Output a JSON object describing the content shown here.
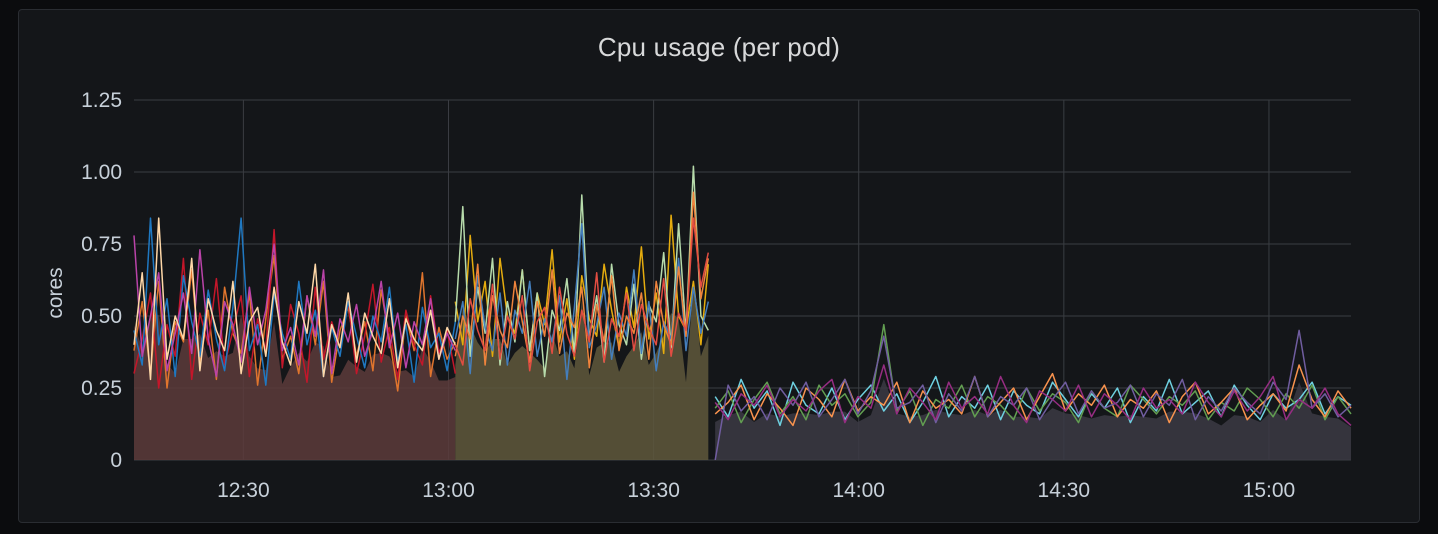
{
  "panel": {
    "title": "Cpu usage (per pod)"
  },
  "chart_data": {
    "type": "line",
    "title": "Cpu usage (per pod)",
    "xlabel": "",
    "ylabel": "cores",
    "ylim": [
      0,
      1.25
    ],
    "xlim": [
      "12:14",
      "15:12"
    ],
    "yticks": [
      "0",
      "0.25",
      "0.50",
      "0.75",
      "1.00",
      "1.25"
    ],
    "xticks": [
      "12:30",
      "13:00",
      "13:30",
      "14:00",
      "14:30",
      "15:00"
    ],
    "grid": true,
    "legend": "none",
    "background": "#141619",
    "segments": [
      {
        "start": "12:14",
        "end": "13:01",
        "fill": "#5c3b3b",
        "series": [
          {
            "color": "#e0752d",
            "values": [
              0.38,
              0.55,
              0.3,
              0.62,
              0.25,
              0.48,
              0.41,
              0.66,
              0.33,
              0.52,
              0.28,
              0.6,
              0.44,
              0.37,
              0.58,
              0.26,
              0.49,
              0.71,
              0.35,
              0.43,
              0.3,
              0.57,
              0.4,
              0.62,
              0.27,
              0.45,
              0.53,
              0.36,
              0.48,
              0.31,
              0.59,
              0.42,
              0.24,
              0.5,
              0.38,
              0.65,
              0.29,
              0.46,
              0.35,
              0.41
            ]
          },
          {
            "color": "#c4162a",
            "values": [
              0.3,
              0.42,
              0.58,
              0.25,
              0.47,
              0.36,
              0.7,
              0.28,
              0.51,
              0.4,
              0.63,
              0.33,
              0.45,
              0.57,
              0.29,
              0.49,
              0.38,
              0.8,
              0.32,
              0.54,
              0.44,
              0.27,
              0.6,
              0.35,
              0.48,
              0.39,
              0.55,
              0.3,
              0.43,
              0.61,
              0.34,
              0.46,
              0.28,
              0.52,
              0.4,
              0.33,
              0.57,
              0.37,
              0.45,
              0.3
            ]
          },
          {
            "color": "#1f78c1",
            "values": [
              0.45,
              0.33,
              0.84,
              0.4,
              0.56,
              0.29,
              0.64,
              0.48,
              0.36,
              0.59,
              0.42,
              0.31,
              0.53,
              0.84,
              0.38,
              0.47,
              0.26,
              0.58,
              0.44,
              0.35,
              0.62,
              0.4,
              0.52,
              0.29,
              0.46,
              0.36,
              0.55,
              0.43,
              0.32,
              0.5,
              0.41,
              0.6,
              0.34,
              0.47,
              0.27,
              0.53,
              0.39,
              0.44,
              0.31,
              0.48
            ]
          },
          {
            "color": "#ba43a9",
            "values": [
              0.78,
              0.36,
              0.5,
              0.65,
              0.31,
              0.44,
              0.58,
              0.37,
              0.73,
              0.42,
              0.29,
              0.55,
              0.47,
              0.34,
              0.6,
              0.4,
              0.52,
              0.75,
              0.38,
              0.46,
              0.33,
              0.57,
              0.43,
              0.66,
              0.3,
              0.49,
              0.41,
              0.54,
              0.36,
              0.45,
              0.62,
              0.39,
              0.51,
              0.32,
              0.48,
              0.4,
              0.56,
              0.35,
              0.44,
              0.38
            ]
          },
          {
            "color": "#ffd8a8",
            "values": [
              0.4,
              0.65,
              0.28,
              0.84,
              0.35,
              0.5,
              0.42,
              0.7,
              0.31,
              0.56,
              0.45,
              0.38,
              0.62,
              0.3,
              0.48,
              0.53,
              0.36,
              0.6,
              0.41,
              0.33,
              0.55,
              0.44,
              0.68,
              0.29,
              0.47,
              0.39,
              0.58,
              0.34,
              0.51,
              0.43,
              0.37,
              0.56,
              0.32,
              0.49,
              0.42,
              0.38,
              0.52,
              0.35,
              0.46,
              0.4
            ]
          }
        ]
      },
      {
        "start": "13:01",
        "end": "13:38",
        "fill": "#5f583c",
        "series": [
          {
            "color": "#e5ac0e",
            "values": [
              0.55,
              0.4,
              0.78,
              0.48,
              0.62,
              0.36,
              0.7,
              0.5,
              0.44,
              0.66,
              0.38,
              0.58,
              0.47,
              0.73,
              0.41,
              0.56,
              0.35,
              0.64,
              0.49,
              0.43,
              0.68,
              0.52,
              0.39,
              0.6,
              0.46,
              0.74,
              0.42,
              0.58,
              0.37,
              0.85,
              0.5,
              0.45,
              0.62,
              0.4,
              0.68
            ]
          },
          {
            "color": "#b7dbab",
            "values": [
              0.48,
              0.88,
              0.36,
              0.6,
              0.44,
              0.7,
              0.33,
              0.55,
              0.41,
              0.66,
              0.38,
              0.58,
              0.29,
              0.52,
              0.45,
              0.63,
              0.37,
              0.92,
              0.42,
              0.57,
              0.34,
              0.68,
              0.47,
              0.4,
              0.61,
              0.35,
              0.54,
              0.48,
              0.72,
              0.39,
              0.82,
              0.44,
              1.02,
              0.5,
              0.45
            ]
          },
          {
            "color": "#447ebc",
            "values": [
              0.42,
              0.55,
              0.3,
              0.64,
              0.46,
              0.38,
              0.58,
              0.33,
              0.52,
              0.44,
              0.62,
              0.36,
              0.49,
              0.41,
              0.57,
              0.28,
              0.53,
              0.82,
              0.39,
              0.47,
              0.6,
              0.35,
              0.51,
              0.43,
              0.66,
              0.37,
              0.55,
              0.31,
              0.48,
              0.42,
              0.7,
              0.38,
              0.6,
              0.44,
              0.55
            ]
          },
          {
            "color": "#ef843c",
            "values": [
              0.36,
              0.5,
              0.42,
              0.68,
              0.33,
              0.57,
              0.45,
              0.39,
              0.62,
              0.48,
              0.34,
              0.55,
              0.43,
              0.66,
              0.37,
              0.51,
              0.46,
              0.6,
              0.32,
              0.54,
              0.41,
              0.64,
              0.38,
              0.5,
              0.44,
              0.58,
              0.35,
              0.62,
              0.47,
              0.4,
              0.67,
              0.43,
              0.93,
              0.56,
              0.7
            ]
          },
          {
            "color": "#e24d42",
            "values": [
              0.4,
              0.33,
              0.56,
              0.45,
              0.38,
              0.61,
              0.35,
              0.5,
              0.42,
              0.57,
              0.31,
              0.48,
              0.53,
              0.37,
              0.6,
              0.44,
              0.36,
              0.52,
              0.41,
              0.65,
              0.34,
              0.49,
              0.43,
              0.58,
              0.38,
              0.54,
              0.46,
              0.4,
              0.63,
              0.36,
              0.51,
              0.45,
              0.84,
              0.6,
              0.72
            ]
          }
        ]
      },
      {
        "start": "13:39",
        "end": "15:12",
        "fill": "#3b3a44",
        "series": [
          {
            "color": "#6ed0e0",
            "values": [
              0.22,
              0.15,
              0.28,
              0.18,
              0.24,
              0.12,
              0.27,
              0.19,
              0.16,
              0.25,
              0.14,
              0.21,
              0.26,
              0.17,
              0.23,
              0.13,
              0.2,
              0.29,
              0.15,
              0.22,
              0.18,
              0.26,
              0.14,
              0.24,
              0.19,
              0.16,
              0.27,
              0.21,
              0.15,
              0.23,
              0.18,
              0.25,
              0.13,
              0.22,
              0.17,
              0.28,
              0.16,
              0.2,
              0.24,
              0.15,
              0.26,
              0.19,
              0.14,
              0.23,
              0.18,
              0.21,
              0.27,
              0.16,
              0.22,
              0.19
            ]
          },
          {
            "color": "#629e51",
            "values": [
              0.18,
              0.24,
              0.13,
              0.21,
              0.27,
              0.16,
              0.22,
              0.14,
              0.26,
              0.19,
              0.23,
              0.15,
              0.2,
              0.47,
              0.17,
              0.24,
              0.12,
              0.21,
              0.18,
              0.26,
              0.15,
              0.22,
              0.19,
              0.14,
              0.25,
              0.17,
              0.23,
              0.2,
              0.13,
              0.24,
              0.18,
              0.15,
              0.26,
              0.21,
              0.16,
              0.22,
              0.19,
              0.24,
              0.14,
              0.2,
              0.17,
              0.25,
              0.21,
              0.15,
              0.23,
              0.18,
              0.26,
              0.14,
              0.22,
              0.16
            ]
          },
          {
            "color": "#f9934e",
            "values": [
              0.16,
              0.2,
              0.26,
              0.14,
              0.23,
              0.18,
              0.12,
              0.25,
              0.21,
              0.15,
              0.28,
              0.17,
              0.22,
              0.19,
              0.27,
              0.13,
              0.24,
              0.18,
              0.21,
              0.16,
              0.29,
              0.15,
              0.2,
              0.25,
              0.14,
              0.22,
              0.3,
              0.17,
              0.23,
              0.19,
              0.26,
              0.15,
              0.21,
              0.18,
              0.24,
              0.13,
              0.22,
              0.27,
              0.16,
              0.2,
              0.25,
              0.14,
              0.19,
              0.23,
              0.17,
              0.33,
              0.21,
              0.15,
              0.24,
              0.18
            ]
          },
          {
            "color": "#705da0",
            "values": [
              0.0,
              0.26,
              0.17,
              0.22,
              0.14,
              0.25,
              0.19,
              0.27,
              0.15,
              0.21,
              0.28,
              0.16,
              0.24,
              0.43,
              0.18,
              0.2,
              0.26,
              0.13,
              0.23,
              0.17,
              0.29,
              0.15,
              0.22,
              0.19,
              0.25,
              0.14,
              0.21,
              0.27,
              0.16,
              0.24,
              0.18,
              0.2,
              0.26,
              0.15,
              0.23,
              0.19,
              0.28,
              0.14,
              0.22,
              0.17,
              0.25,
              0.2,
              0.16,
              0.27,
              0.21,
              0.45,
              0.18,
              0.23,
              0.15,
              0.19
            ]
          },
          {
            "color": "#962d82",
            "values": [
              0.2,
              0.14,
              0.23,
              0.19,
              0.26,
              0.15,
              0.21,
              0.17,
              0.24,
              0.28,
              0.13,
              0.22,
              0.18,
              0.33,
              0.16,
              0.25,
              0.2,
              0.14,
              0.27,
              0.18,
              0.22,
              0.16,
              0.29,
              0.19,
              0.13,
              0.24,
              0.21,
              0.17,
              0.26,
              0.15,
              0.23,
              0.19,
              0.14,
              0.25,
              0.18,
              0.21,
              0.16,
              0.27,
              0.2,
              0.15,
              0.24,
              0.17,
              0.22,
              0.29,
              0.14,
              0.21,
              0.18,
              0.25,
              0.16,
              0.12
            ]
          }
        ]
      }
    ]
  }
}
